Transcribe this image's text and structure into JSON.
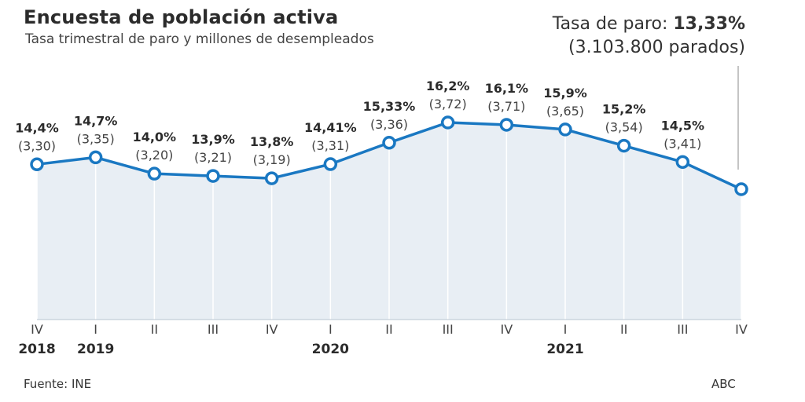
{
  "header": {
    "title": "Encuesta de población activa",
    "subtitle": "Tasa trimestral de paro y millones de desempleados"
  },
  "callout": {
    "prefix": "Tasa de paro: ",
    "value": "13,33%",
    "detail": "(3.103.800 parados)"
  },
  "footer": {
    "source": "Fuente: INE",
    "brand": "ABC"
  },
  "colors": {
    "line": "#1a78c2",
    "area": "#e8eef4",
    "grid": "#ffffff",
    "baseline": "#b8c4cf"
  },
  "chart_data": {
    "type": "line",
    "title": "Encuesta de población activa",
    "subtitle": "Tasa trimestral de paro y millones de desempleados",
    "categories": [
      "IV",
      "I",
      "II",
      "III",
      "IV",
      "I",
      "II",
      "III",
      "IV",
      "I",
      "II",
      "III",
      "IV"
    ],
    "years": [
      "2018",
      "2019",
      "",
      "",
      "",
      "2020",
      "",
      "",
      "",
      "2021",
      "",
      "",
      ""
    ],
    "series": [
      {
        "values": [
          14.4,
          14.7,
          14.0,
          13.9,
          13.8,
          14.41,
          15.33,
          16.2,
          16.1,
          15.9,
          15.2,
          14.5,
          13.33
        ]
      }
    ],
    "labels": [
      "14,4%",
      "14,7%",
      "14,0%",
      "13,9%",
      "13,8%",
      "14,41%",
      "15,33%",
      "16,2%",
      "16,1%",
      "15,9%",
      "15,2%",
      "14,5%",
      ""
    ],
    "unemployed": [
      "(3,30)",
      "(3,35)",
      "(3,20)",
      "(3,21)",
      "(3,19)",
      "(3,31)",
      "(3,36)",
      "(3,72)",
      "(3,71)",
      "(3,65)",
      "(3,54)",
      "(3,41)",
      ""
    ],
    "grid": "vertical",
    "legend": "none"
  }
}
